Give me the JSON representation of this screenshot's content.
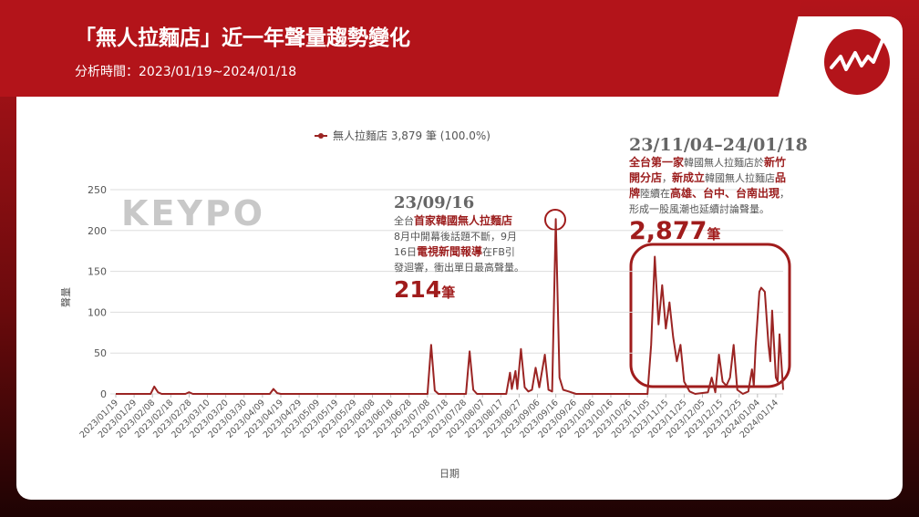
{
  "chart_data": {
    "type": "line",
    "title": "「無人拉麵店」近一年聲量趨勢變化",
    "subtitle": "分析時間：2023/01/19~2024/01/18",
    "watermark": "KEYPO",
    "xlabel": "日期",
    "ylabel": "聲量",
    "x": [
      "2023/01/19",
      "2023/02/07",
      "2023/02/09",
      "2023/02/11",
      "2023/02/13",
      "2023/02/26",
      "2023/02/28",
      "2023/03/02",
      "2023/04/13",
      "2023/04/15",
      "2023/04/17",
      "2023/04/19",
      "2023/07/08",
      "2023/07/10",
      "2023/07/12",
      "2023/07/14",
      "2023/07/29",
      "2023/07/31",
      "2023/08/02",
      "2023/08/04",
      "2023/08/20",
      "2023/08/22",
      "2023/08/23",
      "2023/08/25",
      "2023/08/26",
      "2023/08/28",
      "2023/08/30",
      "2023/09/01",
      "2023/09/03",
      "2023/09/05",
      "2023/09/07",
      "2023/09/10",
      "2023/09/12",
      "2023/09/14",
      "2023/09/16",
      "2023/09/18",
      "2023/09/20",
      "2023/09/23",
      "2023/09/27",
      "2023/11/05",
      "2023/11/07",
      "2023/11/09",
      "2023/11/11",
      "2023/11/13",
      "2023/11/15",
      "2023/11/17",
      "2023/11/19",
      "2023/11/21",
      "2023/11/23",
      "2023/11/25",
      "2023/11/28",
      "2023/12/01",
      "2023/12/08",
      "2023/12/10",
      "2023/12/12",
      "2023/12/14",
      "2023/12/16",
      "2023/12/18",
      "2023/12/20",
      "2023/12/22",
      "2023/12/24",
      "2023/12/27",
      "2023/12/30",
      "2024/01/01",
      "2024/01/02",
      "2024/01/03",
      "2024/01/05",
      "2024/01/06",
      "2024/01/08",
      "2024/01/10",
      "2024/01/11",
      "2024/01/12",
      "2024/01/14",
      "2024/01/15",
      "2024/01/16",
      "2024/01/18"
    ],
    "series": [
      {
        "name": "無人拉麵店 3,879 筆 (100.0%)",
        "color": "#9b2423",
        "values": [
          0,
          0,
          9,
          2,
          0,
          0,
          2,
          0,
          0,
          6,
          1,
          0,
          0,
          60,
          4,
          0,
          0,
          52,
          5,
          0,
          0,
          26,
          6,
          28,
          6,
          55,
          8,
          3,
          5,
          32,
          8,
          48,
          5,
          3,
          214,
          20,
          5,
          3,
          0,
          0,
          60,
          168,
          85,
          133,
          80,
          112,
          70,
          40,
          60,
          15,
          3,
          0,
          2,
          20,
          2,
          48,
          15,
          10,
          20,
          60,
          5,
          0,
          3,
          30,
          10,
          58,
          125,
          130,
          125,
          60,
          40,
          102,
          20,
          15,
          73,
          5
        ]
      }
    ],
    "xlim": [
      "2023/01/19",
      "2024/01/18"
    ],
    "xticks": [
      "2023/01/19",
      "2023/01/29",
      "2023/02/08",
      "2023/02/18",
      "2023/02/28",
      "2023/03/10",
      "2023/03/20",
      "2023/03/30",
      "2023/04/09",
      "2023/04/19",
      "2023/04/29",
      "2023/05/09",
      "2023/05/19",
      "2023/05/29",
      "2023/06/08",
      "2023/06/18",
      "2023/06/28",
      "2023/07/08",
      "2023/07/18",
      "2023/07/28",
      "2023/08/07",
      "2023/08/17",
      "2023/08/27",
      "2023/09/06",
      "2023/09/16",
      "2023/09/26",
      "2023/10/06",
      "2023/10/16",
      "2023/10/26",
      "2023/11/05",
      "2023/11/15",
      "2023/11/25",
      "2023/12/05",
      "2023/12/15",
      "2023/12/25",
      "2024/01/04",
      "2024/01/14"
    ],
    "ylim": [
      0,
      250
    ],
    "yticks": [
      0,
      50,
      100,
      150,
      200,
      250
    ],
    "grid": true,
    "legend": "top",
    "annotations": [
      {
        "date": "23/09/16",
        "lines": [
          [
            "全台",
            "首家韓國無人拉麵店"
          ],
          [
            "8月中開幕後話題不斷，9月"
          ],
          [
            "16日",
            "電視新聞報導",
            "在FB引"
          ],
          [
            "發迴響，衝出單日最高聲量。"
          ]
        ],
        "count": "214",
        "unit": "筆"
      },
      {
        "date": "23/11/04–24/01/18",
        "lines": [
          [
            "全台第一家",
            "韓國無人拉麵店於",
            "新竹"
          ],
          [
            "開分店",
            "，",
            "新成立",
            "韓國無人拉麵店",
            "品"
          ],
          [
            "牌",
            "陸續在",
            "高雄、台中、台南出現",
            "，"
          ],
          [
            "形成一股風潮也延續討論聲量。"
          ]
        ],
        "count": "2,877",
        "unit": "筆"
      }
    ]
  }
}
